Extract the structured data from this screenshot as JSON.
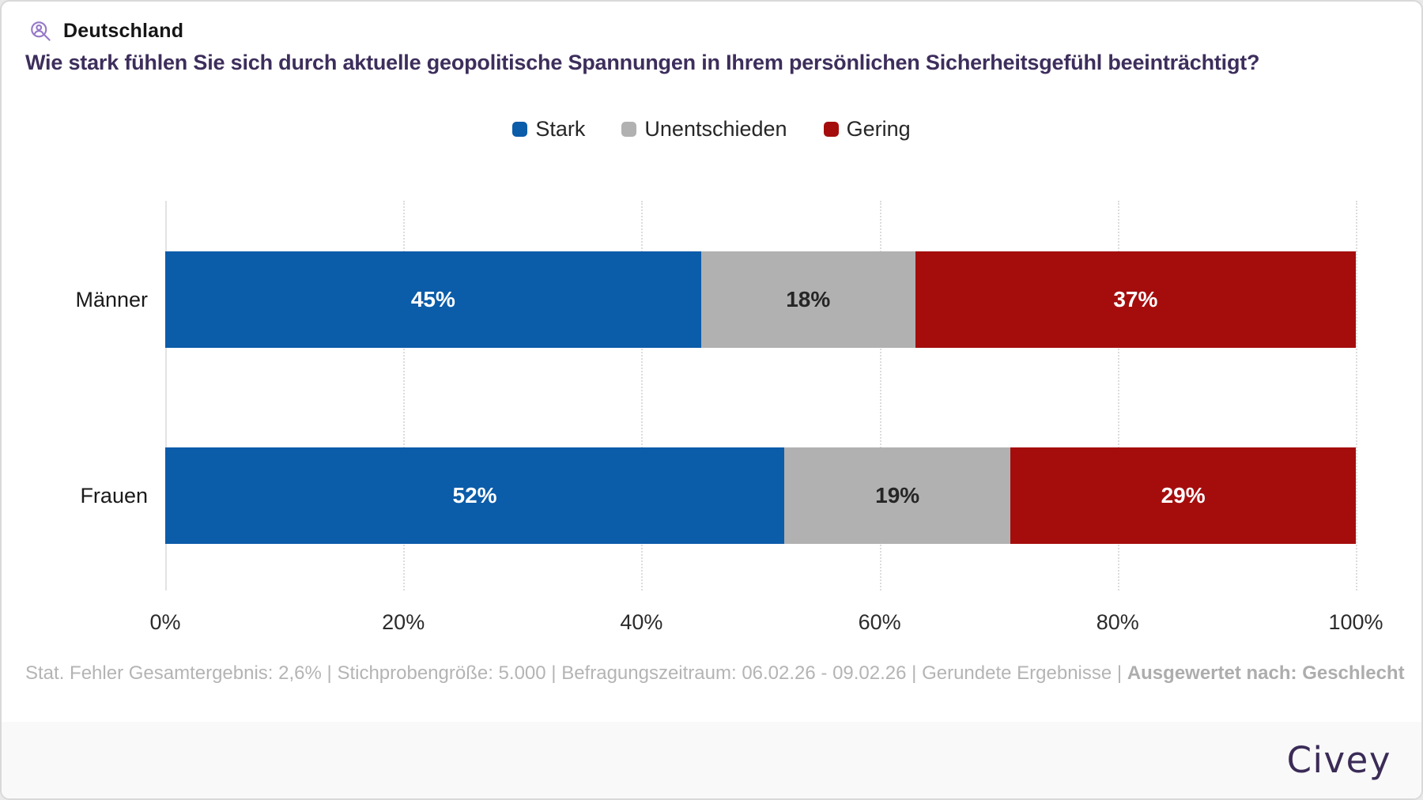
{
  "header": {
    "icon": "user-search-icon",
    "region": "Deutschland"
  },
  "question": "Wie stark fühlen Sie sich durch aktuelle geopolitische Spannungen in Ihrem persönlichen Sicherheitsgefühl beeinträchtigt?",
  "chart_data": {
    "type": "bar",
    "orientation": "horizontal",
    "stacked": true,
    "categories": [
      "Männer",
      "Frauen"
    ],
    "series": [
      {
        "name": "Stark",
        "color": "#0B5CA9",
        "label_color": "#FFFFFF",
        "values": [
          45,
          52
        ]
      },
      {
        "name": "Unentschieden",
        "color": "#B1B1B1",
        "label_color": "#262626",
        "values": [
          18,
          19
        ]
      },
      {
        "name": "Gering",
        "color": "#A50D0D",
        "label_color": "#FFFFFF",
        "values": [
          37,
          29
        ]
      }
    ],
    "value_suffix": "%",
    "xlim": [
      0,
      100
    ],
    "x_ticks": [
      {
        "value": 0,
        "label": "0%"
      },
      {
        "value": 20,
        "label": "20%"
      },
      {
        "value": 40,
        "label": "40%"
      },
      {
        "value": 60,
        "label": "60%"
      },
      {
        "value": 80,
        "label": "80%"
      },
      {
        "value": 100,
        "label": "100%"
      }
    ],
    "legend_position": "top-center",
    "grid": "vertical-dotted"
  },
  "footnote": {
    "items": [
      "Stat. Fehler Gesamtergebnis: 2,6%",
      "Stichprobengröße: 5.000",
      "Befragungszeitraum: 06.02.26 - 09.02.26",
      "Gerundete Ergebnisse",
      "Ausgewertet nach: Geschlecht"
    ],
    "separator": " | ",
    "emphasize_last": true
  },
  "brand": {
    "logo": "Civey",
    "color": "#3B2B57"
  },
  "colors": {
    "title": "#3D2E5C",
    "icon": "#9678C8"
  }
}
